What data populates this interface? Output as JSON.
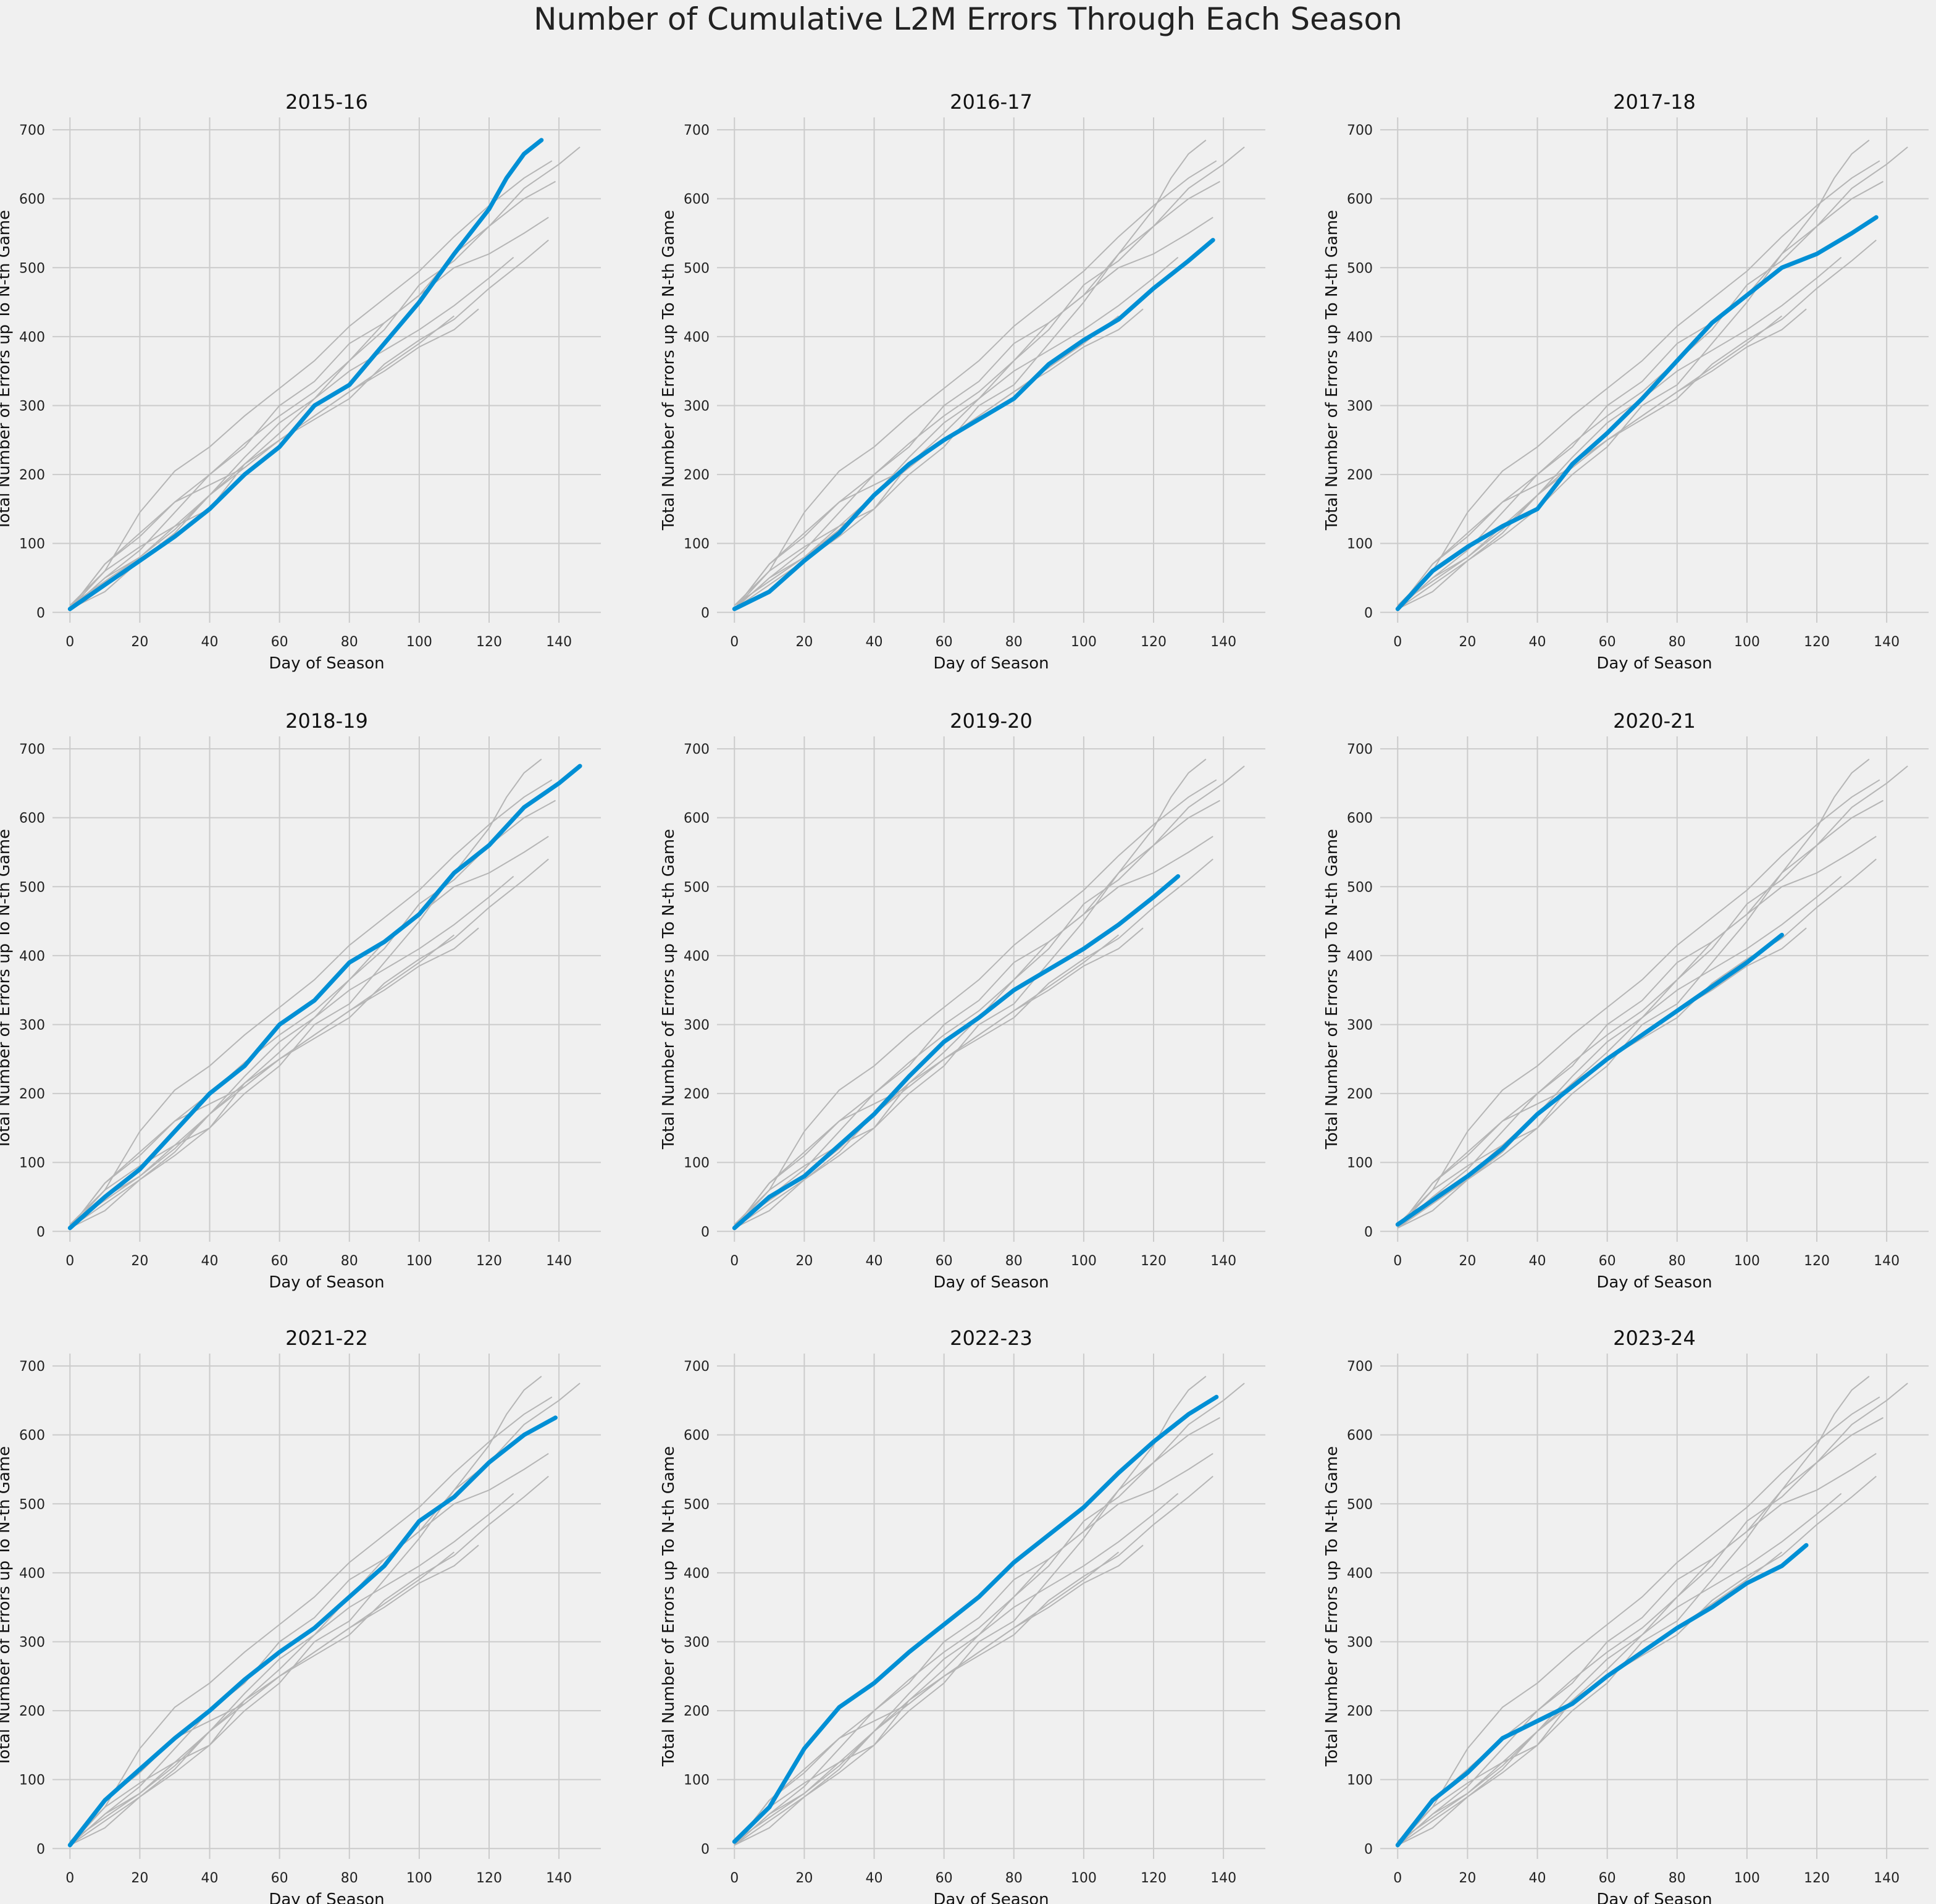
{
  "figure_title": "Number of Cumulative L2M Errors Through Each Season",
  "colors": {
    "background": "#f0f0f0",
    "grid": "#cbcbcb",
    "highlight": "#008fd5",
    "other": "#b5b5b5"
  },
  "chart_data": {
    "type": "line",
    "xlabel": "Day of Season",
    "ylabel": "Total Number of Errors up To N-th Game",
    "xlim": [
      -5,
      152
    ],
    "ylim": [
      -15,
      718
    ],
    "xticks": [
      0,
      20,
      40,
      60,
      80,
      100,
      120,
      140
    ],
    "yticks": [
      0,
      100,
      200,
      300,
      400,
      500,
      600,
      700
    ],
    "grid": true,
    "panel_titles": [
      "2015-16",
      "2016-17",
      "2017-18",
      "2018-19",
      "2019-20",
      "2020-21",
      "2021-22",
      "2022-23",
      "2023-24"
    ],
    "series": [
      {
        "name": "2015-16",
        "x": [
          0,
          10,
          20,
          30,
          40,
          50,
          60,
          70,
          80,
          90,
          100,
          110,
          120,
          125,
          130,
          135
        ],
        "y": [
          5,
          40,
          75,
          110,
          150,
          200,
          240,
          300,
          330,
          390,
          450,
          520,
          585,
          630,
          665,
          685
        ]
      },
      {
        "name": "2016-17",
        "x": [
          0,
          10,
          20,
          30,
          40,
          50,
          60,
          70,
          80,
          90,
          100,
          110,
          120,
          130,
          137
        ],
        "y": [
          5,
          30,
          75,
          115,
          170,
          215,
          250,
          280,
          310,
          360,
          395,
          425,
          470,
          510,
          540
        ]
      },
      {
        "name": "2017-18",
        "x": [
          0,
          10,
          20,
          30,
          40,
          50,
          60,
          70,
          80,
          90,
          100,
          110,
          120,
          130,
          137
        ],
        "y": [
          5,
          60,
          95,
          125,
          150,
          215,
          260,
          310,
          365,
          420,
          460,
          500,
          520,
          550,
          573
        ]
      },
      {
        "name": "2018-19",
        "x": [
          0,
          10,
          20,
          30,
          40,
          50,
          60,
          70,
          80,
          90,
          100,
          110,
          120,
          130,
          140,
          146
        ],
        "y": [
          5,
          50,
          90,
          145,
          200,
          240,
          300,
          335,
          390,
          420,
          460,
          520,
          560,
          615,
          650,
          675
        ]
      },
      {
        "name": "2019-20",
        "x": [
          0,
          10,
          20,
          30,
          40,
          50,
          60,
          70,
          80,
          90,
          100,
          110,
          120,
          127
        ],
        "y": [
          5,
          50,
          80,
          125,
          170,
          225,
          275,
          310,
          350,
          380,
          410,
          445,
          485,
          515
        ]
      },
      {
        "name": "2020-21",
        "x": [
          0,
          10,
          20,
          30,
          40,
          50,
          60,
          70,
          80,
          90,
          100,
          110
        ],
        "y": [
          10,
          45,
          80,
          120,
          170,
          210,
          250,
          285,
          320,
          355,
          390,
          430
        ]
      },
      {
        "name": "2021-22",
        "x": [
          0,
          10,
          20,
          30,
          40,
          50,
          60,
          70,
          80,
          90,
          100,
          110,
          120,
          130,
          139
        ],
        "y": [
          5,
          70,
          115,
          160,
          200,
          245,
          285,
          320,
          365,
          410,
          475,
          510,
          560,
          600,
          625
        ]
      },
      {
        "name": "2022-23",
        "x": [
          0,
          10,
          20,
          30,
          40,
          50,
          60,
          70,
          80,
          90,
          100,
          110,
          120,
          130,
          138
        ],
        "y": [
          10,
          60,
          145,
          205,
          240,
          285,
          325,
          365,
          415,
          455,
          495,
          545,
          590,
          630,
          655
        ]
      },
      {
        "name": "2023-24",
        "x": [
          0,
          10,
          20,
          30,
          40,
          50,
          60,
          70,
          80,
          90,
          100,
          110,
          117
        ],
        "y": [
          5,
          70,
          110,
          160,
          185,
          210,
          250,
          285,
          320,
          350,
          385,
          410,
          440
        ]
      }
    ]
  }
}
